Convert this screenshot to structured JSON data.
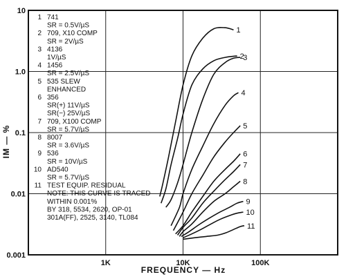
{
  "chart_data": {
    "type": "line",
    "title": "",
    "xlabel": "FREQUENCY — Hz",
    "ylabel": "IM — %",
    "x_scale": "log",
    "y_scale": "log",
    "xlim": [
      100,
      1000000
    ],
    "ylim": [
      0.001,
      10
    ],
    "x_ticks": [
      {
        "value": 1000,
        "label": "1K"
      },
      {
        "value": 10000,
        "label": "10K"
      },
      {
        "value": 100000,
        "label": "100K"
      }
    ],
    "y_ticks": [
      {
        "value": 10,
        "label": "10"
      },
      {
        "value": 1,
        "label": "1.0"
      },
      {
        "value": 0.1,
        "label": "0.1"
      },
      {
        "value": 0.01,
        "label": "0.01"
      },
      {
        "value": 0.001,
        "label": "0.001"
      }
    ],
    "grid": true,
    "legend_position": "top-left",
    "legend": [
      {
        "number": "1",
        "lines": [
          "741",
          "SR = 0.5V/µS"
        ]
      },
      {
        "number": "2",
        "lines": [
          "709, X10 COMP",
          "SR = 2V/µS"
        ]
      },
      {
        "number": "3",
        "lines": [
          "4136",
          "1V/µS"
        ]
      },
      {
        "number": "4",
        "lines": [
          "1456",
          "SR = 2.5V/µS"
        ]
      },
      {
        "number": "5",
        "lines": [
          "535 SLEW",
          "ENHANCED"
        ]
      },
      {
        "number": "6",
        "lines": [
          "356",
          "SR(+) 11V/µS",
          "SR(−) 25V/µS"
        ]
      },
      {
        "number": "7",
        "lines": [
          "709, X100 COMP",
          "SR = 5.7V/µS"
        ]
      },
      {
        "number": "8",
        "lines": [
          "8007",
          "SR = 3.6V/µS"
        ]
      },
      {
        "number": "9",
        "lines": [
          "536",
          "SR = 10V/µS"
        ]
      },
      {
        "number": "10",
        "lines": [
          "AD540",
          "SR = 5.7V/µS"
        ]
      },
      {
        "number": "11",
        "lines": [
          "TEST EQUIP. RESIDUAL",
          "NOTE: THIS CURVE IS TRACED",
          "WITHIN 0.001%",
          "BY 318, 5534, 2620, OP-01",
          "301A(FF), 2525, 3140, TL084"
        ]
      }
    ],
    "series": [
      {
        "name": "1",
        "x": [
          5000,
          5500,
          6500,
          8000,
          10000,
          13000,
          18000,
          25000,
          35000,
          45000
        ],
        "y": [
          0.009,
          0.015,
          0.04,
          0.15,
          0.6,
          1.8,
          3.5,
          5.0,
          5.2,
          4.8
        ]
      },
      {
        "name": "2",
        "x": [
          5200,
          6000,
          7000,
          8500,
          10000,
          13000,
          18000,
          25000,
          35000,
          50000
        ],
        "y": [
          0.007,
          0.012,
          0.03,
          0.08,
          0.2,
          0.6,
          1.1,
          1.5,
          1.7,
          1.8
        ]
      },
      {
        "name": "3",
        "x": [
          6000,
          7000,
          8500,
          10000,
          13000,
          18000,
          25000,
          35000,
          45000,
          55000
        ],
        "y": [
          0.006,
          0.008,
          0.015,
          0.03,
          0.1,
          0.35,
          0.9,
          1.4,
          1.65,
          1.7
        ]
      },
      {
        "name": "4",
        "x": [
          7000,
          9000,
          10000,
          13000,
          18000,
          25000,
          35000,
          45000,
          52000
        ],
        "y": [
          0.003,
          0.006,
          0.01,
          0.025,
          0.06,
          0.14,
          0.28,
          0.4,
          0.45
        ]
      },
      {
        "name": "5",
        "x": [
          7500,
          10000,
          13000,
          18000,
          25000,
          35000,
          45000,
          55000
        ],
        "y": [
          0.0025,
          0.005,
          0.01,
          0.02,
          0.04,
          0.07,
          0.1,
          0.13
        ]
      },
      {
        "name": "6",
        "x": [
          8000,
          10000,
          13000,
          18000,
          25000,
          35000,
          45000,
          55000
        ],
        "y": [
          0.0022,
          0.003,
          0.005,
          0.009,
          0.016,
          0.025,
          0.034,
          0.045
        ]
      },
      {
        "name": "7",
        "x": [
          8500,
          10000,
          13000,
          18000,
          25000,
          35000,
          45000,
          55000
        ],
        "y": [
          0.0021,
          0.0028,
          0.004,
          0.007,
          0.011,
          0.017,
          0.023,
          0.03
        ]
      },
      {
        "name": "8",
        "x": [
          9000,
          10000,
          13000,
          18000,
          25000,
          35000,
          45000,
          55000
        ],
        "y": [
          0.002,
          0.0024,
          0.0032,
          0.005,
          0.0075,
          0.01,
          0.013,
          0.016
        ]
      },
      {
        "name": "9",
        "x": [
          9500,
          12000,
          16000,
          22000,
          30000,
          40000,
          50000,
          60000
        ],
        "y": [
          0.002,
          0.0024,
          0.0031,
          0.004,
          0.005,
          0.006,
          0.007,
          0.0075
        ]
      },
      {
        "name": "10",
        "x": [
          10000,
          13000,
          17000,
          23000,
          30000,
          40000,
          50000,
          60000
        ],
        "y": [
          0.0019,
          0.0022,
          0.0026,
          0.0032,
          0.0038,
          0.0044,
          0.0048,
          0.005
        ]
      },
      {
        "name": "11",
        "x": [
          10000,
          14000,
          20000,
          28000,
          36000,
          45000,
          55000,
          62000
        ],
        "y": [
          0.0018,
          0.0019,
          0.002,
          0.0021,
          0.0023,
          0.0026,
          0.0029,
          0.003
        ]
      }
    ]
  }
}
